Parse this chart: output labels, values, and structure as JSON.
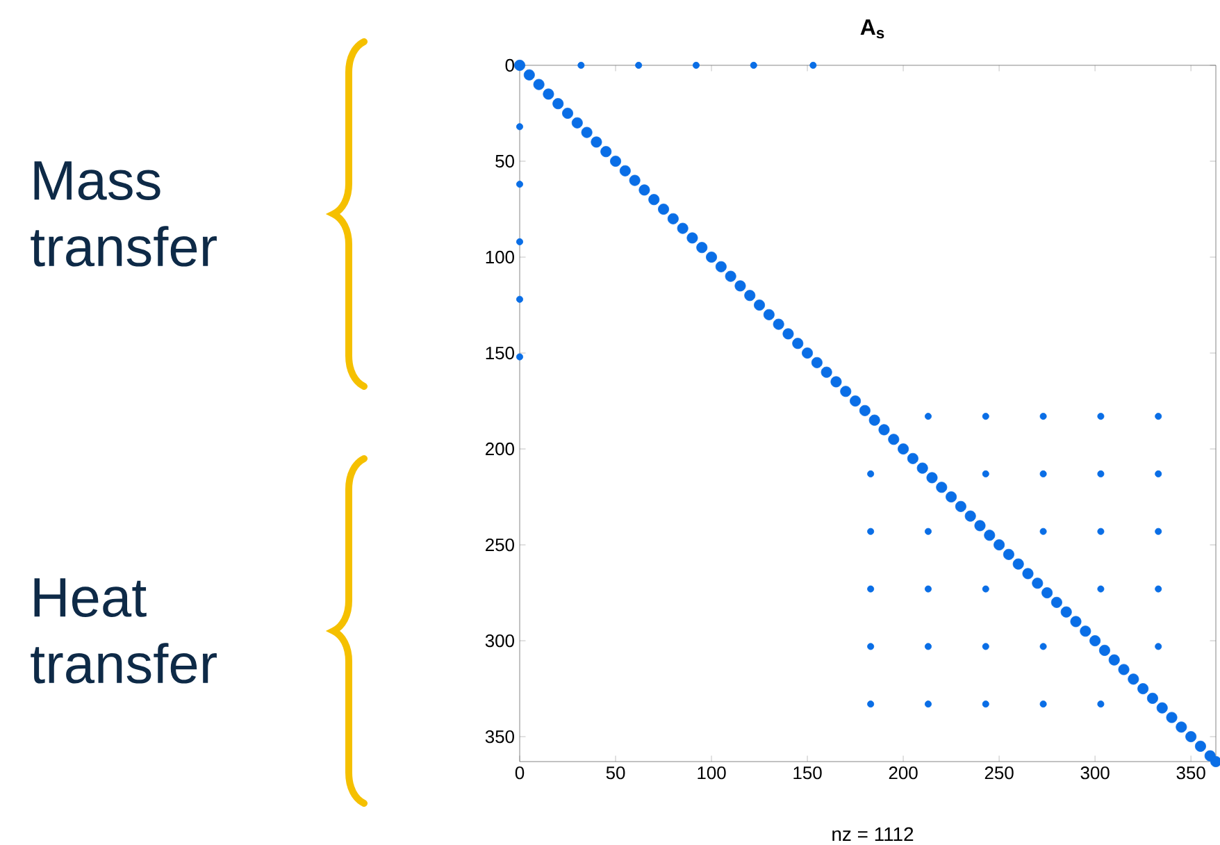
{
  "chart_data": {
    "type": "scatter",
    "title": "A$_{s}$",
    "xlabel": "nz = 1112",
    "xlim": [
      0,
      363
    ],
    "ylim": [
      363,
      0
    ],
    "xticks": [
      0,
      50,
      100,
      150,
      200,
      250,
      300,
      350
    ],
    "yticks": [
      0,
      50,
      100,
      150,
      200,
      250,
      300,
      350
    ],
    "marker": "circle",
    "grid": false,
    "annotations": [
      "Mass transfer",
      "Heat transfer"
    ],
    "series": [
      {
        "color": "#0a6ee6",
        "x": [
          0,
          5,
          10,
          15,
          20,
          25,
          30,
          35,
          40,
          45,
          50,
          55,
          60,
          65,
          70,
          75,
          80,
          85,
          90,
          95,
          100,
          105,
          110,
          115,
          120,
          125,
          130,
          135,
          140,
          145,
          150,
          155,
          160,
          165,
          170,
          175,
          180,
          185,
          190,
          195,
          200,
          205,
          210,
          215,
          220,
          225,
          230,
          235,
          240,
          245,
          250,
          255,
          260,
          265,
          270,
          275,
          280,
          285,
          290,
          295,
          300,
          305,
          310,
          315,
          320,
          325,
          330,
          335,
          340,
          345,
          350,
          355,
          360,
          363
        ],
        "values": [
          0,
          5,
          10,
          15,
          20,
          25,
          30,
          35,
          40,
          45,
          50,
          55,
          60,
          65,
          70,
          75,
          80,
          85,
          90,
          95,
          100,
          105,
          110,
          115,
          120,
          125,
          130,
          135,
          140,
          145,
          150,
          155,
          160,
          165,
          170,
          175,
          180,
          185,
          190,
          195,
          200,
          205,
          210,
          215,
          220,
          225,
          230,
          235,
          240,
          245,
          250,
          255,
          260,
          265,
          270,
          275,
          280,
          285,
          290,
          295,
          300,
          305,
          310,
          315,
          320,
          325,
          330,
          335,
          340,
          345,
          350,
          355,
          360,
          363
        ]
      },
      {
        "color": "#0a6ee6",
        "x": [
          32,
          62,
          92,
          122,
          153,
          0,
          0,
          0,
          0,
          0
        ],
        "values": [
          0,
          0,
          0,
          0,
          0,
          32,
          62,
          92,
          122,
          152
        ]
      },
      {
        "color": "#0a6ee6",
        "x": [
          213,
          243,
          273,
          303,
          333,
          183,
          243,
          273,
          303,
          333,
          183,
          213,
          273,
          303,
          333,
          183,
          213,
          243,
          303,
          333,
          183,
          213,
          243,
          273,
          333,
          183,
          213,
          243,
          273,
          303
        ],
        "values": [
          183,
          183,
          183,
          183,
          183,
          213,
          213,
          213,
          213,
          213,
          243,
          243,
          243,
          243,
          243,
          273,
          273,
          273,
          273,
          273,
          303,
          303,
          303,
          303,
          303,
          333,
          333,
          333,
          333,
          333
        ]
      }
    ]
  }
}
